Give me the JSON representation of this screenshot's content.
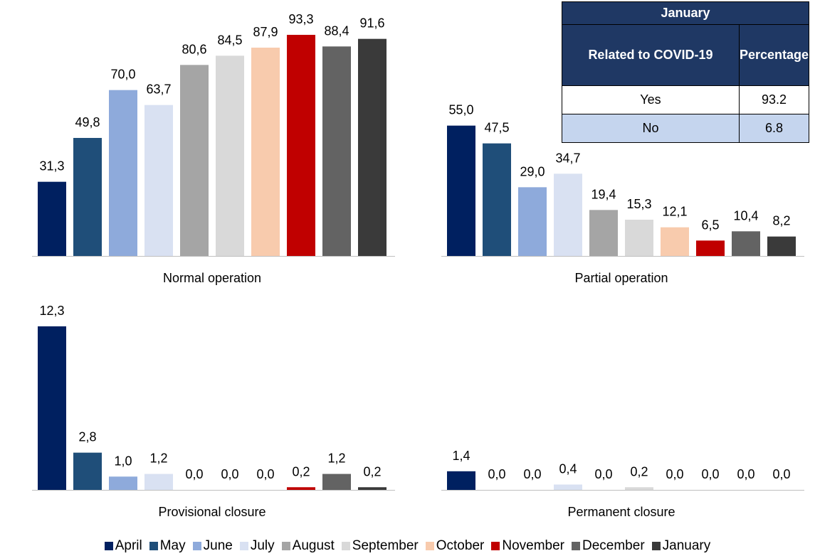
{
  "chart_data": {
    "type": "bar",
    "categories": [
      "Normal operation",
      "Partial operation",
      "Provisional closure",
      "Permanent closure"
    ],
    "series": [
      {
        "name": "April",
        "color": "#002060",
        "values": [
          31.3,
          55.0,
          12.3,
          1.4
        ],
        "value_labels": [
          "31,3",
          "55,0",
          "12,3",
          "1,4"
        ]
      },
      {
        "name": "May",
        "color": "#1f4e79",
        "values": [
          49.8,
          47.5,
          2.8,
          0.0
        ],
        "value_labels": [
          "49,8",
          "47,5",
          "2,8",
          "0,0"
        ]
      },
      {
        "name": "June",
        "color": "#8eaadb",
        "values": [
          70.0,
          29.0,
          1.0,
          0.0
        ],
        "value_labels": [
          "70,0",
          "29,0",
          "1,0",
          "0,0"
        ]
      },
      {
        "name": "July",
        "color": "#d9e1f2",
        "values": [
          63.7,
          34.7,
          1.2,
          0.4
        ],
        "value_labels": [
          "63,7",
          "34,7",
          "1,2",
          "0,4"
        ]
      },
      {
        "name": "August",
        "color": "#a5a5a5",
        "values": [
          80.6,
          19.4,
          0.0,
          0.0
        ],
        "value_labels": [
          "80,6",
          "19,4",
          "0,0",
          "0,0"
        ]
      },
      {
        "name": "September",
        "color": "#d9d9d9",
        "values": [
          84.5,
          15.3,
          0.0,
          0.2
        ],
        "value_labels": [
          "84,5",
          "15,3",
          "0,0",
          "0,2"
        ]
      },
      {
        "name": "October",
        "color": "#f8cbad",
        "values": [
          87.9,
          12.1,
          0.0,
          0.0
        ],
        "value_labels": [
          "87,9",
          "12,1",
          "0,0",
          "0,0"
        ]
      },
      {
        "name": "November",
        "color": "#c00000",
        "values": [
          93.3,
          6.5,
          0.2,
          0.0
        ],
        "value_labels": [
          "93,3",
          "6,5",
          "0,2",
          "0,0"
        ]
      },
      {
        "name": "December",
        "color": "#636363",
        "values": [
          88.4,
          10.4,
          1.2,
          0.0
        ],
        "value_labels": [
          "88,4",
          "10,4",
          "1,2",
          "0,0"
        ]
      },
      {
        "name": "January",
        "color": "#3a3a3a",
        "values": [
          91.6,
          8.2,
          0.2,
          0.0
        ],
        "value_labels": [
          "91,6",
          "8,2",
          "0,2",
          "0,0"
        ]
      }
    ]
  },
  "table": {
    "title": "January",
    "header": [
      "Related to COVID-19",
      "Percentage"
    ],
    "rows": [
      [
        "Yes",
        93.2
      ],
      [
        "No",
        6.8
      ]
    ]
  }
}
